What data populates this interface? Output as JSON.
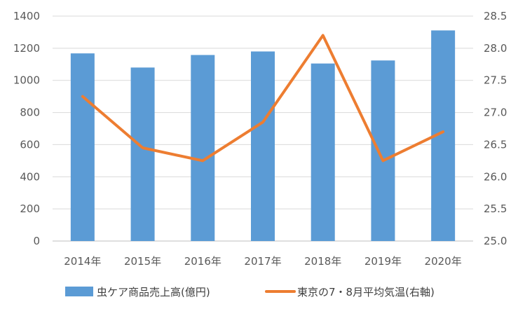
{
  "chart_data": {
    "type": "bar",
    "categories": [
      "2014年",
      "2015年",
      "2016年",
      "2017年",
      "2018年",
      "2019年",
      "2020年"
    ],
    "series": [
      {
        "name": "虫ケア商品売上高(億円)",
        "type": "bar",
        "axis": "left",
        "color": "#5B9BD5",
        "values": [
          1168,
          1080,
          1158,
          1180,
          1105,
          1124,
          1311
        ]
      },
      {
        "name": "東京の7・8月平均気温(右軸)",
        "type": "line",
        "axis": "right",
        "color": "#ED7D31",
        "values": [
          27.25,
          26.45,
          26.25,
          26.85,
          28.2,
          26.25,
          26.7
        ]
      }
    ],
    "y_left": {
      "min": 0,
      "max": 1400,
      "ticks": [
        "0",
        "200",
        "400",
        "600",
        "800",
        "1000",
        "1200",
        "1400"
      ]
    },
    "y_right": {
      "min": 25.0,
      "max": 28.5,
      "ticks": [
        "25.0",
        "25.5",
        "26.0",
        "26.5",
        "27.0",
        "27.5",
        "28.0",
        "28.5"
      ]
    },
    "title": "",
    "xlabel": "",
    "ylabel": "",
    "grid": true,
    "legend_position": "bottom"
  }
}
